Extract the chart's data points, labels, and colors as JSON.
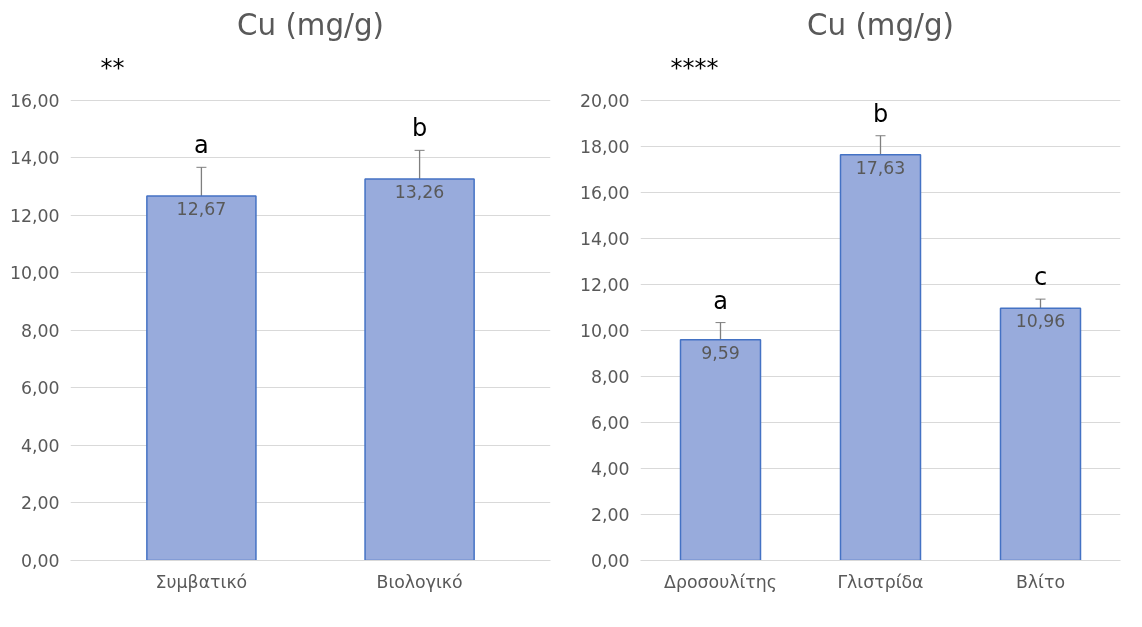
{
  "chart_data": [
    {
      "type": "bar",
      "title": "Cu (mg/g)",
      "categories": [
        "Συμβατικό",
        "Βιολογικό"
      ],
      "values": [
        12.67,
        13.26
      ],
      "color": "#98abdc",
      "errors": [
        1.0,
        1.0
      ],
      "value_labels": [
        "12,67",
        "13,26"
      ],
      "ylim": [
        0,
        16
      ],
      "yticks": [
        {
          "value": 0,
          "label": "0,00"
        },
        {
          "value": 2,
          "label": "2,00"
        },
        {
          "value": 4,
          "label": "4,00"
        },
        {
          "value": 6,
          "label": "6,00"
        },
        {
          "value": 8,
          "label": "8,00"
        },
        {
          "value": 10,
          "label": "10,00"
        },
        {
          "value": 12,
          "label": "12,00"
        },
        {
          "value": 14,
          "label": "14,00"
        },
        {
          "value": 16,
          "label": "16,00"
        }
      ],
      "grid": "y",
      "annotations": [
        "**",
        "a",
        "b"
      ]
    },
    {
      "type": "bar",
      "title": "Cu (mg/g)",
      "categories": [
        "Δροσουλίτης",
        "Γλιστρίδα",
        "Βλίτο"
      ],
      "values": [
        9.59,
        17.63,
        10.96
      ],
      "color": "#98abdc",
      "errors": [
        0.75,
        0.83,
        0.4
      ],
      "value_labels": [
        "9,59",
        "17,63",
        "10,96"
      ],
      "ylim": [
        0,
        20
      ],
      "yticks": [
        {
          "value": 0,
          "label": "0,00"
        },
        {
          "value": 2,
          "label": "2,00"
        },
        {
          "value": 4,
          "label": "4,00"
        },
        {
          "value": 6,
          "label": "6,00"
        },
        {
          "value": 8,
          "label": "8,00"
        },
        {
          "value": 10,
          "label": "10,00"
        },
        {
          "value": 12,
          "label": "12,00"
        },
        {
          "value": 14,
          "label": "14,00"
        },
        {
          "value": 16,
          "label": "16,00"
        },
        {
          "value": 18,
          "label": "18,00"
        },
        {
          "value": 20,
          "label": "20,00"
        }
      ],
      "grid": "y",
      "annotations": [
        "****",
        "a",
        "b",
        "c"
      ]
    }
  ]
}
